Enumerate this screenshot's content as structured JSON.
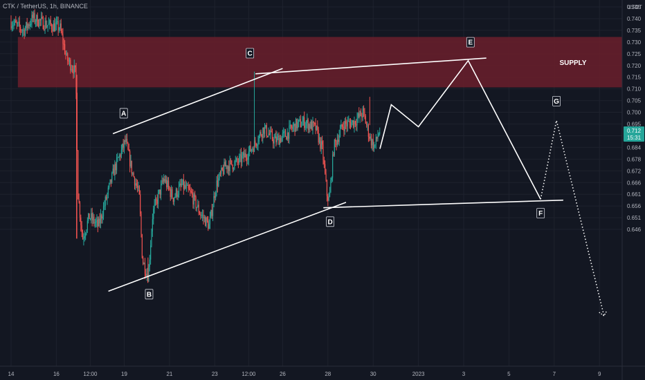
{
  "header": {
    "title": "CTK / TetherUS, 1h, BINANCE"
  },
  "chart_data": {
    "type": "candlestick",
    "currency": "USDT",
    "y_ticks": [
      "0.745",
      "0.740",
      "0.735",
      "0.730",
      "0.725",
      "0.720",
      "0.715",
      "0.710",
      "0.705",
      "0.700",
      "0.695",
      "0.690",
      "0.684",
      "0.678",
      "0.672",
      "0.666",
      "0.661",
      "0.656",
      "0.651",
      "0.646"
    ],
    "x_ticks": [
      {
        "label": "14",
        "day": 14
      },
      {
        "label": "16",
        "day": 16
      },
      {
        "label": "12:00",
        "day": 17.5
      },
      {
        "label": "19",
        "day": 19
      },
      {
        "label": "21",
        "day": 21
      },
      {
        "label": "23",
        "day": 23
      },
      {
        "label": "12:00",
        "day": 24.5
      },
      {
        "label": "26",
        "day": 26
      },
      {
        "label": "28",
        "day": 28
      },
      {
        "label": "30",
        "day": 30
      },
      {
        "label": "2023",
        "day": 32
      },
      {
        "label": "3",
        "day": 34
      },
      {
        "label": "5",
        "day": 36
      },
      {
        "label": "7",
        "day": 38
      },
      {
        "label": "9",
        "day": 40
      }
    ],
    "current_price": {
      "value": "0.712",
      "timer": "15:31",
      "color": "#26a69a"
    },
    "supply_zone": {
      "label": "SUPPLY",
      "top": 0.74,
      "bottom": 0.724,
      "color": "#6b1f2c"
    },
    "wave_points": [
      {
        "label": "A",
        "day": 19.1,
        "price": 0.7092
      },
      {
        "label": "B",
        "day": 20.1,
        "price": 0.6623
      },
      {
        "label": "C",
        "day": 24.8,
        "price": 0.7287
      },
      {
        "label": "D",
        "day": 28.1,
        "price": 0.6862
      },
      {
        "label": "E",
        "day": 34.3,
        "price": 0.7335
      },
      {
        "label": "F",
        "day": 37.4,
        "price": 0.6889
      },
      {
        "label": "G",
        "day": 38.1,
        "price": 0.7135
      }
    ],
    "trendlines": [
      {
        "x1": 18.5,
        "y1": 0.7093,
        "x2": 26.0,
        "y2": 0.73
      },
      {
        "x1": 24.8,
        "y1": 0.7283,
        "x2": 35.0,
        "y2": 0.7333
      },
      {
        "x1": 18.3,
        "y1": 0.6593,
        "x2": 28.8,
        "y2": 0.6875
      },
      {
        "x1": 27.8,
        "y1": 0.6858,
        "x2": 38.4,
        "y2": 0.6882
      }
    ],
    "projection_solid": [
      {
        "day": 30.3,
        "price": 0.7045
      },
      {
        "day": 30.8,
        "price": 0.7185
      },
      {
        "day": 32.0,
        "price": 0.7115
      },
      {
        "day": 34.2,
        "price": 0.7325
      },
      {
        "day": 37.4,
        "price": 0.6885
      }
    ],
    "projection_dotted": [
      {
        "day": 37.4,
        "price": 0.6885
      },
      {
        "day": 38.1,
        "price": 0.7135
      },
      {
        "day": 40.2,
        "price": 0.6515
      }
    ],
    "projection_arrow": {
      "day": 40.2,
      "price": 0.6515
    },
    "colors": {
      "up": "#26a69a",
      "down": "#ef5350",
      "line": "#ffffff",
      "grid": "#1e222d",
      "bg": "#131722"
    }
  }
}
